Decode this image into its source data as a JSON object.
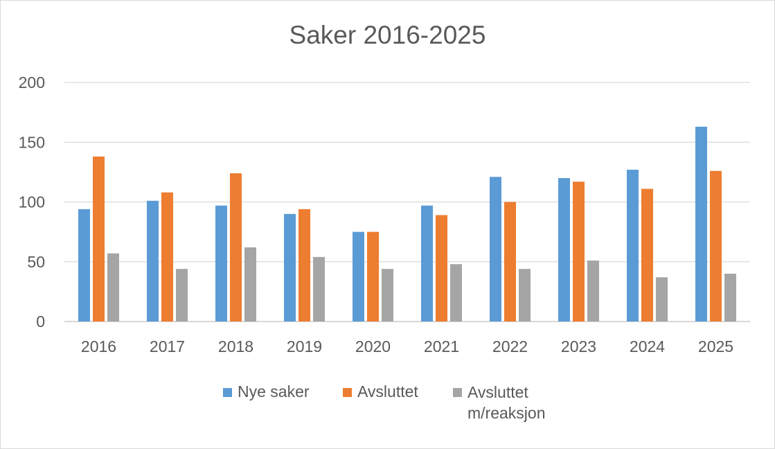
{
  "chart_data": {
    "type": "bar",
    "title": "Saker 2016-2025",
    "categories": [
      "2016",
      "2017",
      "2018",
      "2019",
      "2020",
      "2021",
      "2022",
      "2023",
      "2024",
      "2025"
    ],
    "series": [
      {
        "name": "Nye saker",
        "color": "#5b9bd5",
        "values": [
          94,
          101,
          97,
          90,
          75,
          97,
          121,
          120,
          127,
          163
        ]
      },
      {
        "name": "Avsluttet",
        "color": "#ed7d31",
        "values": [
          138,
          108,
          124,
          94,
          75,
          89,
          100,
          117,
          111,
          126
        ]
      },
      {
        "name": "Avsluttet m/reaksjon",
        "color": "#a5a5a5",
        "values": [
          57,
          44,
          62,
          54,
          44,
          48,
          44,
          51,
          37,
          40
        ]
      }
    ],
    "ylim": [
      0,
      200
    ],
    "yticks": [
      "0",
      "50",
      "100",
      "150",
      "200"
    ],
    "grid": true,
    "legend": "bottom"
  }
}
